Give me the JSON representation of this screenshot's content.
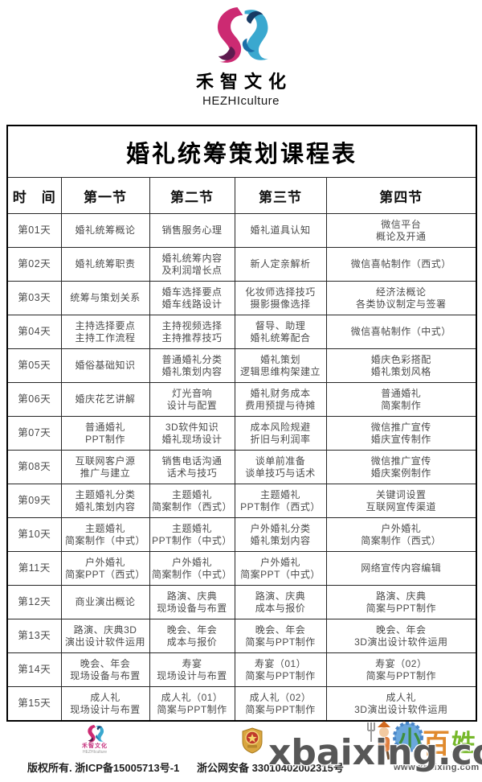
{
  "brand": {
    "name": "禾智文化",
    "subtitle": "HEZHIculture"
  },
  "table": {
    "title": "婚礼统筹策划课程表",
    "headers": [
      "时　间",
      "第一节",
      "第二节",
      "第三节",
      "第四节"
    ],
    "rows": [
      {
        "day": "第01天",
        "cells": [
          [
            "婚礼统筹概论"
          ],
          [
            "销售服务心理"
          ],
          [
            "婚礼道具认知"
          ],
          [
            "微信平台",
            "概论及开通"
          ]
        ]
      },
      {
        "day": "第02天",
        "cells": [
          [
            "婚礼统筹职责"
          ],
          [
            "婚礼统筹内容",
            "及利润增长点"
          ],
          [
            "新人定亲解析"
          ],
          [
            "微信喜帖制作（西式）"
          ]
        ]
      },
      {
        "day": "第03天",
        "cells": [
          [
            "统筹与策划关系"
          ],
          [
            "婚车选择要点",
            "婚车线路设计"
          ],
          [
            "化妆师选择技巧",
            "摄影摄像选择"
          ],
          [
            "经济法概论",
            "各类协议制定与签署"
          ]
        ]
      },
      {
        "day": "第04天",
        "cells": [
          [
            "主持选择要点",
            "主持工作流程"
          ],
          [
            "主持视频选择",
            "主持推荐技巧"
          ],
          [
            "督导、助理",
            "婚礼统筹配合"
          ],
          [
            "微信喜帖制作（中式）"
          ]
        ]
      },
      {
        "day": "第05天",
        "cells": [
          [
            "婚俗基础知识"
          ],
          [
            "普通婚礼分类",
            "婚礼策划内容"
          ],
          [
            "婚礼策划",
            "逻辑思维构架建立"
          ],
          [
            "婚庆色彩搭配",
            "婚礼策划风格"
          ]
        ]
      },
      {
        "day": "第06天",
        "cells": [
          [
            "婚庆花艺讲解"
          ],
          [
            "灯光音响",
            "设计与配置"
          ],
          [
            "婚礼财务成本",
            "费用预提与待摊"
          ],
          [
            "普通婚礼",
            "简案制作"
          ]
        ]
      },
      {
        "day": "第07天",
        "cells": [
          [
            "普通婚礼",
            "PPT制作"
          ],
          [
            "3D软件知识",
            "婚礼现场设计"
          ],
          [
            "成本风险规避",
            "折旧与利润率"
          ],
          [
            "微信推广宣传",
            "婚庆宣传制作"
          ]
        ]
      },
      {
        "day": "第08天",
        "cells": [
          [
            "互联网客户源",
            "推广与建立"
          ],
          [
            "销售电话沟通",
            "话术与技巧"
          ],
          [
            "谈单前准备",
            "谈单技巧与话术"
          ],
          [
            "微信推广宣传",
            "婚庆案例制作"
          ]
        ]
      },
      {
        "day": "第09天",
        "cells": [
          [
            "主题婚礼分类",
            "婚礼策划内容"
          ],
          [
            "主题婚礼",
            "简案制作（西式）"
          ],
          [
            "主题婚礼",
            "PPT制作（西式）"
          ],
          [
            "关键词设置",
            "互联网宣传渠道"
          ]
        ]
      },
      {
        "day": "第10天",
        "cells": [
          [
            "主题婚礼",
            "简案制作（中式）"
          ],
          [
            "主题婚礼",
            "PPT制作（中式）"
          ],
          [
            "户外婚礼分类",
            "婚礼策划内容"
          ],
          [
            "户外婚礼",
            "简案制作（西式）"
          ]
        ]
      },
      {
        "day": "第11天",
        "cells": [
          [
            "户外婚礼",
            "简案PPT（西式）"
          ],
          [
            "户外婚礼",
            "简案制作（中式）"
          ],
          [
            "户外婚礼",
            "简案PPT（中式）"
          ],
          [
            "网络宣传内容编辑"
          ]
        ]
      },
      {
        "day": "第12天",
        "cells": [
          [
            "商业演出概论"
          ],
          [
            "路演、庆典",
            "现场设备与布置"
          ],
          [
            "路演、庆典",
            "成本与报价"
          ],
          [
            "路演、庆典",
            "简案与PPT制作"
          ]
        ]
      },
      {
        "day": "第13天",
        "cells": [
          [
            "路演、庆典3D",
            "演出设计软件运用"
          ],
          [
            "晚会、年会",
            "成本与报价"
          ],
          [
            "晚会、年会",
            "简案与PPT制作"
          ],
          [
            "晚会、年会",
            "3D演出设计软件运用"
          ]
        ]
      },
      {
        "day": "第14天",
        "cells": [
          [
            "晚会、年会",
            "现场设备与布置"
          ],
          [
            "寿宴",
            "现场设计与布置"
          ],
          [
            "寿宴（01）",
            "简案与PPT制作"
          ],
          [
            "寿宴（02）",
            "简案与PPT制作"
          ]
        ]
      },
      {
        "day": "第15天",
        "cells": [
          [
            "成人礼",
            "现场设计与布置"
          ],
          [
            "成人礼（01）",
            "简案与PPT制作"
          ],
          [
            "成人礼（02）",
            "简案与PPT制作"
          ],
          [
            "成人礼",
            "3D演出设计软件运用"
          ]
        ]
      }
    ]
  },
  "footer": {
    "logo_name": "禾智文化",
    "logo_subtitle": "HEZHIculture",
    "copyright": "版权所有. 浙ICP备15005713号-1",
    "beian": "浙公网安备 33010402002315号",
    "site_url": "www.xbaixing.com",
    "mascot": {
      "chars": [
        "小",
        "百",
        "姓"
      ]
    }
  },
  "watermark": {
    "text": "xbaixing.com"
  },
  "icons": {
    "brand_logo": "hezhi-swirl (pink/blue interlocking drops)",
    "police_badge": "gold shield with red circle and star",
    "mascot": "farmer with pitchfork + colored characters"
  },
  "colors": {
    "logo_pink": "#cc2a72",
    "logo_dark_purple": "#5e1b4f",
    "logo_blue": "#3aa8cf",
    "logo_dark_blue": "#173a63",
    "table_border": "#000000",
    "cell_text": "#4b4b4b",
    "watermark_gray": "#4a4a4a",
    "badge_gold": "#d9a53f",
    "badge_red": "#c0392b",
    "mascot_green": "#3f8f3f",
    "mascot_orange": "#e08a2e",
    "mascot_leaf_green": "#76b82a",
    "mascot_blue": "#6aa7dd"
  }
}
